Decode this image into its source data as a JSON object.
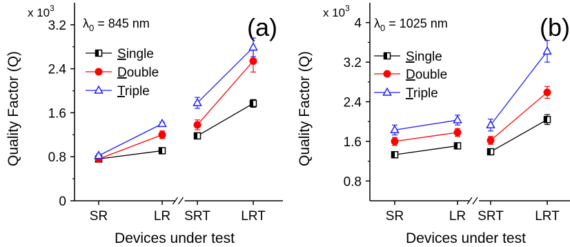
{
  "chart_data": [
    {
      "type": "line",
      "panel_label": "(a)",
      "annotation": "λ0 = 845 nm",
      "annotation_symbol": "λ",
      "annotation_sub": "0",
      "annotation_rest": " = 845 nm",
      "multiplier": "x 10",
      "multiplier_exp": "3",
      "xlabel": "Devices under test",
      "ylabel": "Quality Factor (Q)",
      "categories": [
        "SR",
        "LR",
        "SRT",
        "LRT"
      ],
      "axis_break_between": [
        "LR",
        "SRT"
      ],
      "ylim": [
        0,
        3.6
      ],
      "yticks": [
        0,
        0.8,
        1.6,
        2.4,
        3.2
      ],
      "ytick_labels": [
        "0",
        "0.8",
        "1.6",
        "2.4",
        "3.2"
      ],
      "legend_position": "top-left",
      "series": [
        {
          "name": "Single",
          "underline_letter": "S",
          "rest": "ingle",
          "color": "#000000",
          "marker": "half-square",
          "values": [
            0.76,
            0.91,
            1.18,
            1.77
          ],
          "errors": [
            0.02,
            0.03,
            0.05,
            0.07
          ]
        },
        {
          "name": "Double",
          "underline_letter": "D",
          "rest": "ouble",
          "color": "#ff0000",
          "marker": "circle",
          "values": [
            0.76,
            1.2,
            1.38,
            2.54
          ],
          "errors": [
            0.03,
            0.07,
            0.09,
            0.2
          ]
        },
        {
          "name": "Triple",
          "underline_letter": "T",
          "rest": "riple",
          "color": "#1f1fff",
          "marker": "triangle",
          "values": [
            0.82,
            1.4,
            1.78,
            2.79
          ],
          "errors": [
            0.03,
            0.03,
            0.1,
            0.17
          ]
        }
      ]
    },
    {
      "type": "line",
      "panel_label": "(b)",
      "annotation": "λ0 = 1025 nm",
      "annotation_symbol": "λ",
      "annotation_sub": "0",
      "annotation_rest": " = 1025 nm",
      "multiplier": "x 10",
      "multiplier_exp": "3",
      "xlabel": "Devices under test",
      "ylabel": "Quality Factor (Q)",
      "categories": [
        "SR",
        "LR",
        "SRT",
        "LRT"
      ],
      "axis_break_between": [
        "LR",
        "SRT"
      ],
      "ylim": [
        0.4,
        4.4
      ],
      "yticks": [
        0.8,
        1.6,
        2.4,
        3.2,
        4.0
      ],
      "ytick_labels": [
        "0.8",
        "1.6",
        "2.4",
        "3.2",
        "4"
      ],
      "legend_position": "top-left",
      "series": [
        {
          "name": "Single",
          "underline_letter": "S",
          "rest": "ingle",
          "color": "#000000",
          "marker": "half-square",
          "values": [
            1.33,
            1.51,
            1.39,
            2.04
          ],
          "errors": [
            0.05,
            0.05,
            0.05,
            0.1
          ]
        },
        {
          "name": "Double",
          "underline_letter": "D",
          "rest": "ouble",
          "color": "#ff0000",
          "marker": "circle",
          "values": [
            1.6,
            1.78,
            1.62,
            2.59
          ],
          "errors": [
            0.08,
            0.08,
            0.08,
            0.12
          ]
        },
        {
          "name": "Triple",
          "underline_letter": "T",
          "rest": "riple",
          "color": "#1f1fff",
          "marker": "triangle",
          "values": [
            1.83,
            2.03,
            1.93,
            3.42
          ],
          "errors": [
            0.1,
            0.1,
            0.12,
            0.22
          ]
        }
      ]
    }
  ]
}
